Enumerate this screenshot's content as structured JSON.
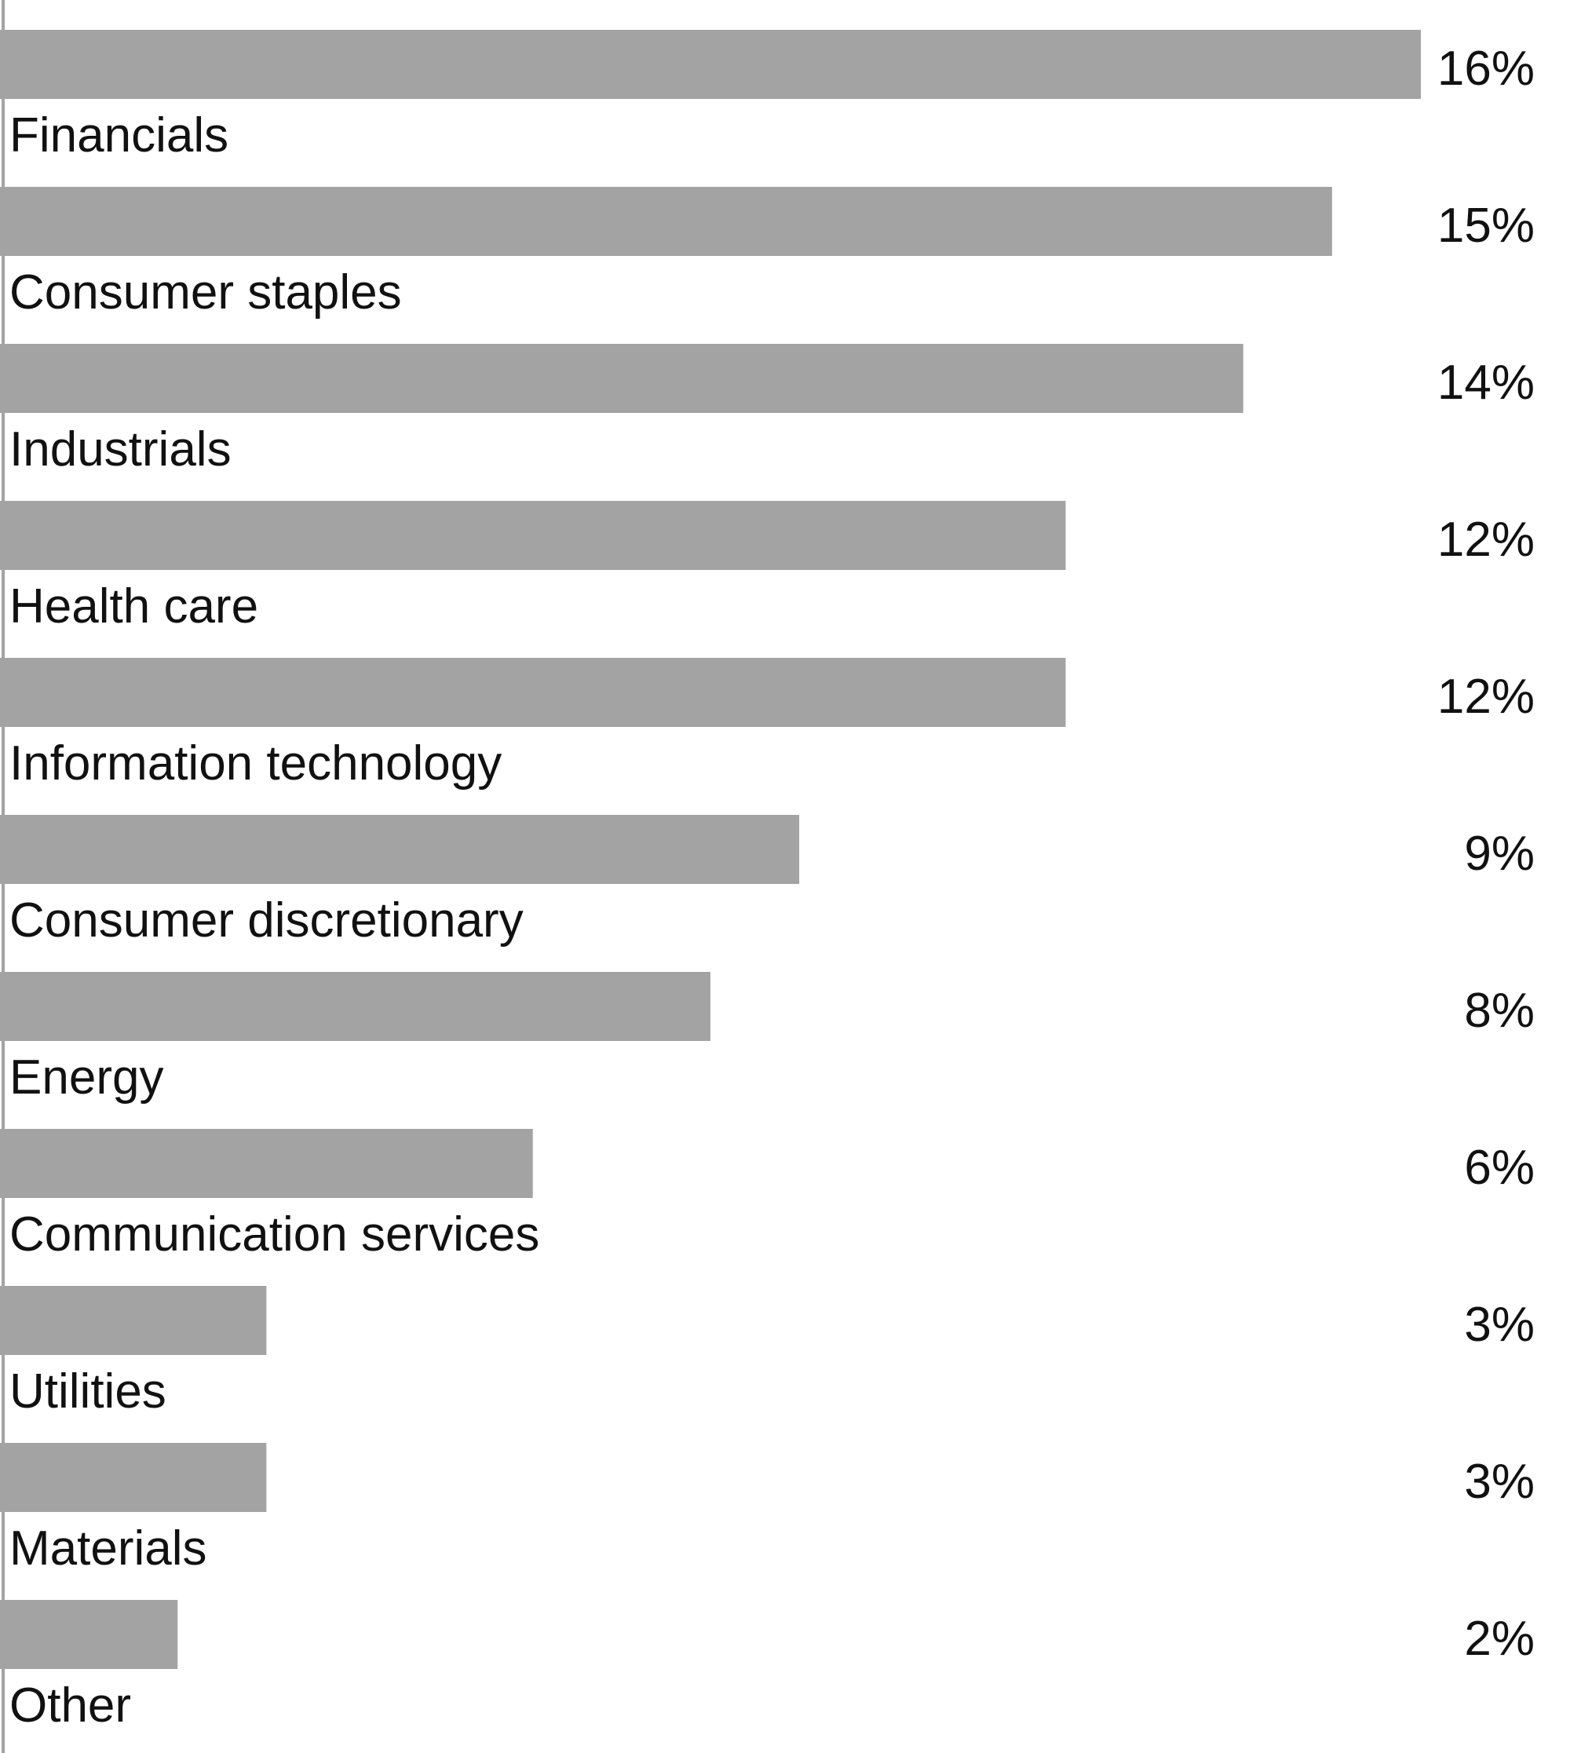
{
  "colors": {
    "bar": "#a3a3a3",
    "axis": "#a3a3a3",
    "text": "#111111",
    "background": "#ffffff"
  },
  "chart_data": {
    "type": "bar",
    "orientation": "horizontal",
    "title": "",
    "xlabel": "",
    "ylabel": "",
    "unit": "%",
    "xlim": [
      0,
      16
    ],
    "grid": false,
    "legend": "none",
    "categories": [
      "Financials",
      "Consumer staples",
      "Industrials",
      "Health care",
      "Information technology",
      "Consumer discretionary",
      "Energy",
      "Communication services",
      "Utilities",
      "Materials",
      "Other"
    ],
    "values": [
      16,
      15,
      14,
      12,
      12,
      9,
      8,
      6,
      3,
      3,
      2
    ],
    "value_labels": [
      "16%",
      "15%",
      "14%",
      "12%",
      "12%",
      "9%",
      "8%",
      "6%",
      "3%",
      "3%",
      "2%"
    ]
  }
}
